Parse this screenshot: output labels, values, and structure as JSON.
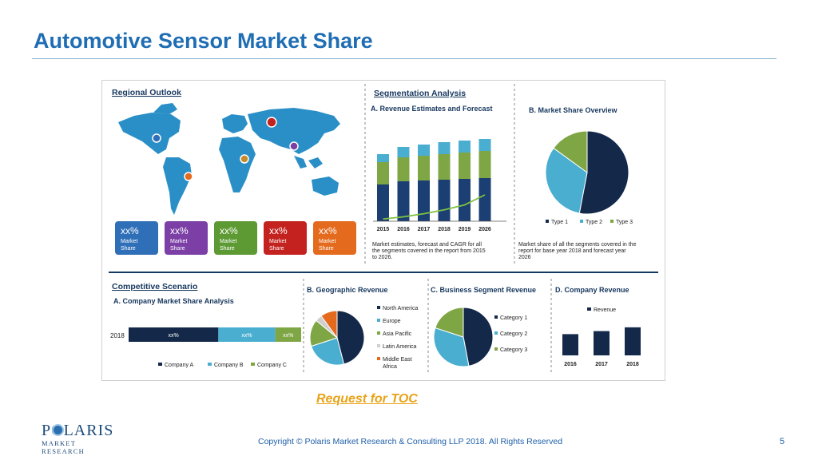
{
  "slide": {
    "title": "Automotive Sensor Market Share",
    "toc_link": "Request for TOC",
    "footer": "Copyright © Polaris Market Research & Consulting LLP 2018. All Rights Reserved",
    "page_number": "5",
    "logo_name": "POLARIS",
    "logo_sub": "MARKET RESEARCH"
  },
  "infographic": {
    "regional": {
      "heading": "Regional Outlook",
      "boxes": [
        {
          "value": "xx%",
          "label1": "Market",
          "label2": "Share",
          "color": "#2f6fb8"
        },
        {
          "value": "xx%",
          "label1": "Market",
          "label2": "Share",
          "color": "#7b3fa6"
        },
        {
          "value": "xx%",
          "label1": "Market",
          "label2": "Share",
          "color": "#5d9a34"
        },
        {
          "value": "xx%",
          "label1": "Market",
          "label2": "Share",
          "color": "#c3221f"
        },
        {
          "value": "xx%",
          "label1": "Market",
          "label2": "Share",
          "color": "#e46a1e"
        }
      ]
    },
    "segmentation": {
      "heading": "Segmentation Analysis",
      "revenue_title": "A. Revenue Estimates and Forecast",
      "revenue_note": [
        "Market estimates, forecast and CAGR for all",
        "the segments covered in the report from 2015",
        "to 2026."
      ],
      "share_title": "B. Market Share Overview",
      "share_note": [
        "Market share of all the segments covered in the",
        "report for base year 2018 and forecast year",
        "2026"
      ]
    },
    "competitive": {
      "heading": "Competitive Scenario",
      "subtitle": "A. Company Market Share Analysis",
      "bar_year": "2018"
    },
    "geographic_title": "B. Geographic Revenue",
    "business_title": "C. Business Segment Revenue",
    "company_title": "D. Company Revenue"
  },
  "chart_data": [
    {
      "type": "bar",
      "title": "A. Revenue Estimates and Forecast",
      "categories": [
        "2015",
        "2016",
        "2017",
        "2018",
        "2019",
        "2026"
      ],
      "series": [
        {
          "values": [
            46,
            50,
            51,
            52,
            53,
            54
          ],
          "color": "#1b3f73"
        },
        {
          "values": [
            28,
            30,
            31,
            32,
            33,
            34
          ],
          "color": "#7fa644"
        },
        {
          "values": [
            10,
            13,
            14,
            15,
            15,
            15
          ],
          "color": "#4aaed0"
        }
      ],
      "trend": [
        5,
        10,
        17,
        26,
        37,
        60
      ],
      "trend_color": "#7fc241",
      "ylim": [
        0,
        110
      ]
    },
    {
      "type": "pie",
      "title": "B. Market Share Overview",
      "labels": [
        "Type 1",
        "Type 2",
        "Type 3"
      ],
      "values": [
        53,
        32,
        15
      ],
      "colors": [
        "#14294a",
        "#4aaed0",
        "#7fa644"
      ]
    },
    {
      "type": "bar",
      "title": "A. Company Market Share Analysis",
      "orientation": "horizontal",
      "categories": [
        "2018"
      ],
      "series": [
        {
          "name": "Company A",
          "values": [
            52
          ],
          "label": "xx%",
          "color": "#14294a"
        },
        {
          "name": "Company B",
          "values": [
            33
          ],
          "label": "xx%",
          "color": "#4aaed0"
        },
        {
          "name": "Company C",
          "values": [
            15
          ],
          "label": "xx%",
          "color": "#7fa644"
        }
      ]
    },
    {
      "type": "pie",
      "title": "B. Geographic Revenue",
      "labels": [
        "North America",
        "Europe",
        "Asia Pacific",
        "Latin America",
        "Middle East Africa"
      ],
      "values": [
        46,
        24,
        16,
        4,
        10
      ],
      "colors": [
        "#14294a",
        "#4aaed0",
        "#7fa644",
        "#cfcfcf",
        "#e46a1e"
      ]
    },
    {
      "type": "pie",
      "title": "C. Business Segment Revenue",
      "labels": [
        "Category 1",
        "Category 2",
        "Category 3"
      ],
      "values": [
        47,
        33,
        20
      ],
      "colors": [
        "#14294a",
        "#4aaed0",
        "#7fa644"
      ]
    },
    {
      "type": "bar",
      "title": "D. Company Revenue",
      "categories": [
        "2016",
        "2017",
        "2018"
      ],
      "series": [
        {
          "name": "Revenue",
          "values": [
            28,
            32,
            37
          ],
          "color": "#14294a"
        }
      ],
      "ylim": [
        0,
        40
      ]
    }
  ]
}
